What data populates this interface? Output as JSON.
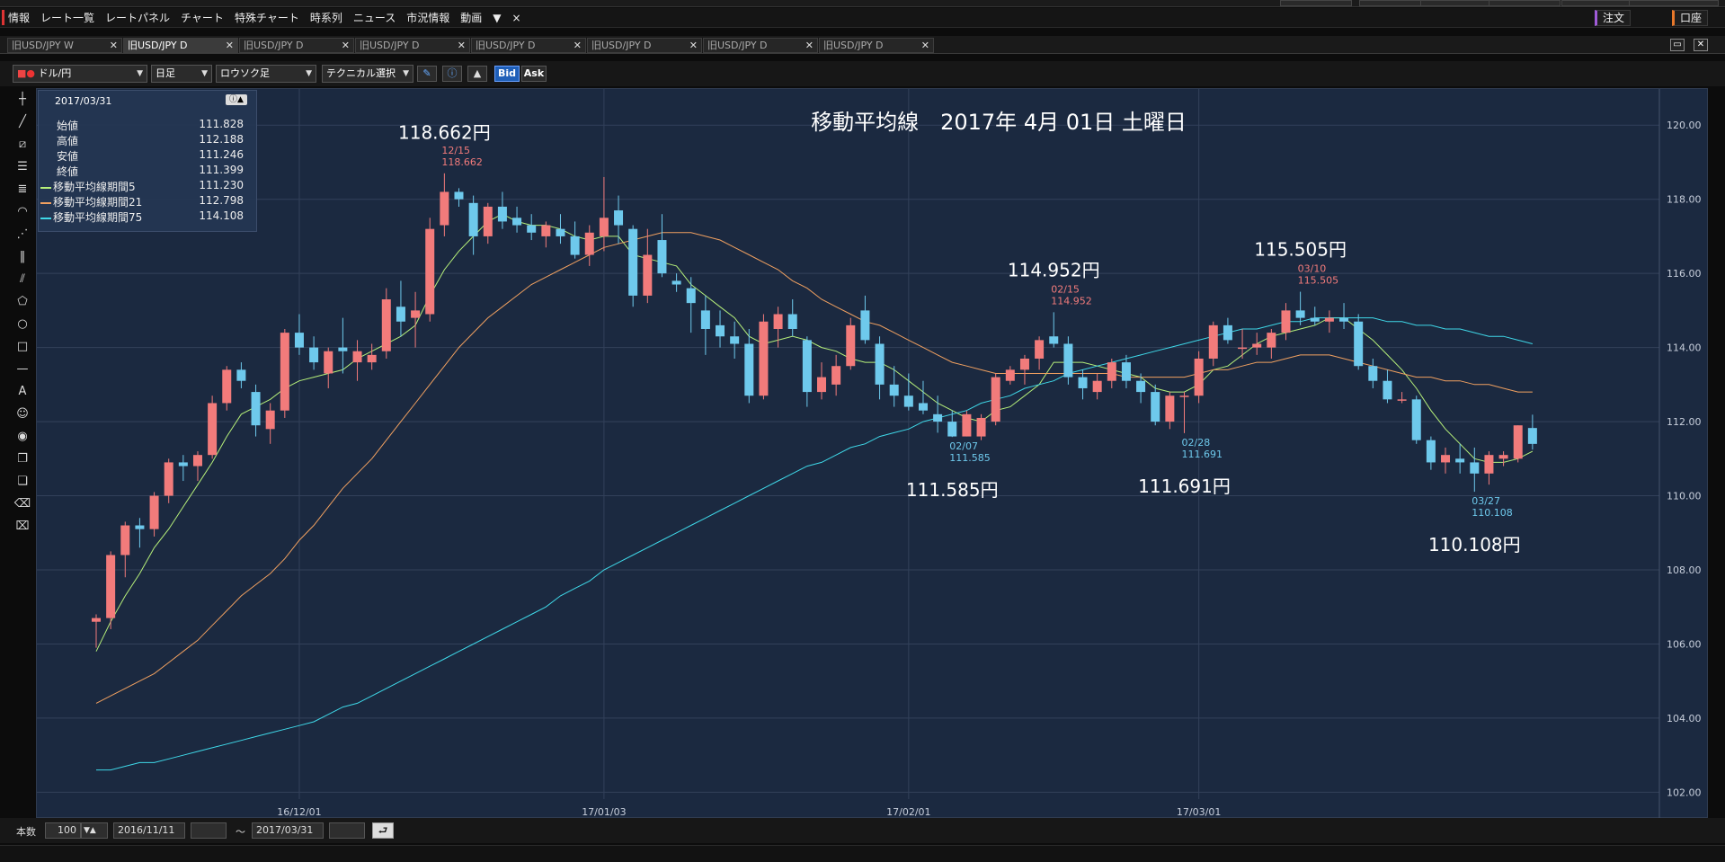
{
  "menubar": {
    "items": [
      "情報",
      "レート一覧",
      "レートパネル",
      "チャート",
      "特殊チャート",
      "時系列",
      "ニュース",
      "市況情報",
      "動画",
      "▼",
      "×"
    ],
    "order_button": "注文",
    "account_button": "口座"
  },
  "tabs": [
    {
      "label": "旧USD/JPY W",
      "active": false
    },
    {
      "label": "旧USD/JPY D",
      "active": true
    },
    {
      "label": "旧USD/JPY D",
      "active": false
    },
    {
      "label": "旧USD/JPY D",
      "active": false
    },
    {
      "label": "旧USD/JPY D",
      "active": false
    },
    {
      "label": "旧USD/JPY D",
      "active": false
    },
    {
      "label": "旧USD/JPY D",
      "active": false
    },
    {
      "label": "旧USD/JPY D",
      "active": false
    }
  ],
  "toolbar": {
    "pair": "ドル/円",
    "timeframe": "日足",
    "chart_type": "ロウソク足",
    "technical": "テクニカル選択",
    "bid_label": "Bid",
    "ask_label": "Ask"
  },
  "info_panel": {
    "date": "2017/03/31",
    "rows": [
      {
        "label": "始値",
        "value": "111.828"
      },
      {
        "label": "高値",
        "value": "112.188"
      },
      {
        "label": "安値",
        "value": "111.246"
      },
      {
        "label": "終値",
        "value": "111.399"
      },
      {
        "label": "移動平均線期間5",
        "value": "111.230",
        "color": "#b6f07a"
      },
      {
        "label": "移動平均線期間21",
        "value": "112.798",
        "color": "#f0a060"
      },
      {
        "label": "移動平均線期間75",
        "value": "114.108",
        "color": "#3fd8e8"
      }
    ]
  },
  "bottombar": {
    "count_label": "本数",
    "count_value": "100",
    "from_date": "2016/11/11",
    "tilde": "〜",
    "to_date": "2017/03/31"
  },
  "colors": {
    "bull": "#f27b7b",
    "bear": "#6ec9ec",
    "ma5": "#b6f07a",
    "ma21": "#f0a060",
    "ma75": "#3fd8e8",
    "plot_bg": "#1b2940",
    "grid": "#33415a"
  },
  "chart_data": {
    "type": "candlestick",
    "title": "移動平均線　2017年 4月 01日 土曜日",
    "ylim": [
      101.5,
      121.0
    ],
    "yticks": [
      102,
      104,
      106,
      108,
      110,
      112,
      114,
      116,
      118,
      120
    ],
    "ytick_labels": [
      "102.00",
      "104.00",
      "106.00",
      "108.00",
      "110.00",
      "112.00",
      "114.00",
      "116.00",
      "118.00",
      "120.00"
    ],
    "xtick_labels": [
      {
        "index": 14,
        "label": "16/12/01"
      },
      {
        "index": 35,
        "label": "17/01/03"
      },
      {
        "index": 56,
        "label": "17/02/01"
      },
      {
        "index": 76,
        "label": "17/03/01"
      }
    ],
    "candles": [
      [
        106.6,
        106.8,
        105.9,
        106.7
      ],
      [
        106.7,
        108.5,
        106.4,
        108.4
      ],
      [
        108.4,
        109.3,
        107.8,
        109.2
      ],
      [
        109.2,
        109.4,
        108.6,
        109.1
      ],
      [
        109.1,
        110.1,
        108.9,
        110.0
      ],
      [
        110.0,
        111.0,
        109.8,
        110.9
      ],
      [
        110.9,
        111.1,
        110.4,
        110.8
      ],
      [
        110.8,
        111.2,
        110.4,
        111.1
      ],
      [
        111.1,
        112.7,
        111.0,
        112.5
      ],
      [
        112.5,
        113.5,
        112.3,
        113.4
      ],
      [
        113.4,
        113.6,
        112.9,
        113.1
      ],
      [
        112.8,
        113.0,
        111.6,
        111.9
      ],
      [
        111.8,
        112.5,
        111.4,
        112.3
      ],
      [
        112.3,
        114.5,
        112.1,
        114.4
      ],
      [
        114.4,
        114.9,
        113.8,
        114.0
      ],
      [
        114.0,
        114.3,
        113.4,
        113.6
      ],
      [
        113.3,
        114.0,
        112.9,
        113.9
      ],
      [
        114.0,
        114.8,
        113.3,
        113.9
      ],
      [
        113.6,
        114.2,
        113.1,
        113.9
      ],
      [
        113.6,
        114.1,
        113.4,
        113.8
      ],
      [
        113.9,
        115.6,
        113.7,
        115.3
      ],
      [
        115.1,
        115.8,
        114.3,
        114.7
      ],
      [
        114.8,
        115.5,
        114.0,
        115.0
      ],
      [
        114.9,
        117.5,
        114.7,
        117.2
      ],
      [
        117.3,
        118.7,
        117.0,
        118.2
      ],
      [
        118.2,
        118.3,
        117.8,
        118.0
      ],
      [
        117.9,
        118.1,
        116.5,
        117.0
      ],
      [
        117.0,
        117.9,
        116.8,
        117.8
      ],
      [
        117.8,
        118.2,
        117.2,
        117.4
      ],
      [
        117.5,
        117.8,
        117.1,
        117.3
      ],
      [
        117.3,
        117.6,
        116.9,
        117.1
      ],
      [
        117.0,
        117.4,
        116.7,
        117.3
      ],
      [
        117.2,
        117.6,
        116.8,
        117.0
      ],
      [
        117.0,
        117.4,
        116.4,
        116.5
      ],
      [
        116.5,
        117.3,
        116.2,
        117.1
      ],
      [
        117.0,
        118.6,
        116.6,
        117.5
      ],
      [
        117.7,
        118.1,
        116.8,
        117.3
      ],
      [
        117.2,
        117.3,
        115.1,
        115.4
      ],
      [
        115.4,
        117.2,
        115.2,
        116.5
      ],
      [
        116.9,
        117.6,
        115.9,
        116.0
      ],
      [
        115.8,
        116.0,
        115.5,
        115.7
      ],
      [
        115.6,
        115.9,
        114.4,
        115.2
      ],
      [
        115.0,
        115.4,
        113.8,
        114.5
      ],
      [
        114.6,
        115.0,
        114.0,
        114.3
      ],
      [
        114.3,
        114.7,
        113.7,
        114.1
      ],
      [
        114.1,
        114.5,
        112.5,
        112.7
      ],
      [
        112.7,
        114.9,
        112.6,
        114.7
      ],
      [
        114.5,
        115.1,
        114.0,
        114.9
      ],
      [
        114.9,
        115.3,
        114.3,
        114.5
      ],
      [
        114.2,
        114.3,
        112.4,
        112.8
      ],
      [
        112.8,
        113.6,
        112.6,
        113.2
      ],
      [
        113.0,
        113.8,
        112.7,
        113.5
      ],
      [
        113.5,
        114.8,
        113.4,
        114.6
      ],
      [
        115.0,
        115.4,
        114.1,
        114.2
      ],
      [
        114.1,
        114.3,
        112.6,
        113.0
      ],
      [
        113.0,
        113.5,
        112.4,
        112.7
      ],
      [
        112.7,
        113.3,
        112.3,
        112.4
      ],
      [
        112.5,
        113.1,
        112.2,
        112.3
      ],
      [
        112.2,
        112.7,
        111.7,
        112.0
      ],
      [
        112.0,
        112.3,
        111.585,
        111.6
      ],
      [
        111.6,
        112.3,
        111.6,
        112.2
      ],
      [
        111.6,
        112.2,
        111.5,
        112.1
      ],
      [
        112.0,
        113.3,
        111.9,
        113.2
      ],
      [
        113.1,
        113.5,
        113.0,
        113.4
      ],
      [
        113.4,
        113.8,
        113.0,
        113.7
      ],
      [
        113.7,
        114.3,
        113.4,
        114.2
      ],
      [
        114.3,
        114.952,
        114.0,
        114.1
      ],
      [
        114.1,
        114.3,
        113.0,
        113.2
      ],
      [
        113.2,
        113.4,
        112.6,
        112.9
      ],
      [
        112.8,
        113.3,
        112.6,
        113.1
      ],
      [
        113.1,
        113.7,
        112.9,
        113.6
      ],
      [
        113.6,
        113.8,
        112.9,
        113.1
      ],
      [
        113.1,
        113.3,
        112.5,
        112.8
      ],
      [
        112.8,
        113.0,
        111.9,
        112.0
      ],
      [
        112.0,
        112.8,
        111.8,
        112.7
      ],
      [
        112.7,
        112.8,
        111.691,
        112.7
      ],
      [
        112.7,
        113.9,
        112.5,
        113.7
      ],
      [
        113.7,
        114.7,
        113.5,
        114.6
      ],
      [
        114.6,
        114.8,
        114.1,
        114.2
      ],
      [
        114.0,
        114.5,
        113.7,
        114.0
      ],
      [
        114.0,
        114.4,
        113.8,
        114.1
      ],
      [
        114.0,
        114.5,
        113.7,
        114.4
      ],
      [
        114.4,
        115.2,
        114.2,
        115.0
      ],
      [
        115.0,
        115.505,
        114.6,
        114.8
      ],
      [
        114.8,
        115.1,
        114.6,
        114.7
      ],
      [
        114.7,
        115.0,
        114.4,
        114.8
      ],
      [
        114.8,
        115.2,
        114.5,
        114.7
      ],
      [
        114.7,
        114.9,
        113.4,
        113.5
      ],
      [
        113.5,
        113.7,
        112.9,
        113.1
      ],
      [
        113.1,
        113.4,
        112.5,
        112.6
      ],
      [
        112.6,
        112.8,
        112.5,
        112.6
      ],
      [
        112.6,
        112.7,
        111.4,
        111.5
      ],
      [
        111.5,
        111.6,
        110.7,
        110.9
      ],
      [
        110.9,
        111.3,
        110.6,
        111.1
      ],
      [
        111.0,
        111.4,
        110.6,
        110.9
      ],
      [
        110.9,
        111.3,
        110.108,
        110.6
      ],
      [
        110.6,
        111.2,
        110.3,
        111.1
      ],
      [
        111.0,
        111.2,
        110.8,
        111.1
      ],
      [
        111.0,
        111.9,
        110.9,
        111.9
      ],
      [
        111.828,
        112.188,
        111.246,
        111.399
      ]
    ],
    "series": [
      {
        "name": "移動平均線期間5",
        "values": [
          105.8,
          106.6,
          107.3,
          107.9,
          108.6,
          109.1,
          109.7,
          110.3,
          110.9,
          111.6,
          112.2,
          112.4,
          112.6,
          112.9,
          113.1,
          113.2,
          113.3,
          113.4,
          113.7,
          113.9,
          114.1,
          114.3,
          114.6,
          115.4,
          116.1,
          116.6,
          117.0,
          117.4,
          117.6,
          117.4,
          117.3,
          117.3,
          117.2,
          117.0,
          116.9,
          117.0,
          117.0,
          116.5,
          116.4,
          116.3,
          116.2,
          115.7,
          115.4,
          115.1,
          114.8,
          114.3,
          114.1,
          114.2,
          114.3,
          114.2,
          114.0,
          113.9,
          113.7,
          113.6,
          113.6,
          113.4,
          113.1,
          112.8,
          112.5,
          112.3,
          112.1,
          112.0,
          112.3,
          112.4,
          112.7,
          113.0,
          113.6,
          113.6,
          113.6,
          113.5,
          113.4,
          113.3,
          113.2,
          112.9,
          112.8,
          112.8,
          113.0,
          113.4,
          113.5,
          113.8,
          114.1,
          114.3,
          114.4,
          114.5,
          114.6,
          114.8,
          114.8,
          114.5,
          114.2,
          113.8,
          113.4,
          112.9,
          112.3,
          111.8,
          111.4,
          111.0,
          110.9,
          110.9,
          111.0,
          111.2
        ]
      },
      {
        "name": "移動平均線期間21",
        "values": [
          104.4,
          104.6,
          104.8,
          105.0,
          105.2,
          105.5,
          105.8,
          106.1,
          106.5,
          106.9,
          107.3,
          107.6,
          107.9,
          108.3,
          108.8,
          109.2,
          109.7,
          110.2,
          110.6,
          111.0,
          111.5,
          112.0,
          112.5,
          113.0,
          113.5,
          114.0,
          114.4,
          114.8,
          115.1,
          115.4,
          115.7,
          115.9,
          116.1,
          116.3,
          116.5,
          116.7,
          116.8,
          116.9,
          117.0,
          117.1,
          117.1,
          117.1,
          117.0,
          116.9,
          116.7,
          116.5,
          116.3,
          116.1,
          115.8,
          115.6,
          115.3,
          115.1,
          114.9,
          114.7,
          114.6,
          114.4,
          114.2,
          114.0,
          113.8,
          113.6,
          113.5,
          113.4,
          113.3,
          113.3,
          113.3,
          113.3,
          113.3,
          113.3,
          113.3,
          113.3,
          113.3,
          113.2,
          113.2,
          113.2,
          113.2,
          113.2,
          113.3,
          113.4,
          113.4,
          113.5,
          113.6,
          113.6,
          113.7,
          113.8,
          113.8,
          113.8,
          113.7,
          113.6,
          113.5,
          113.4,
          113.3,
          113.2,
          113.2,
          113.1,
          113.1,
          113.0,
          113.0,
          112.9,
          112.8,
          112.8
        ]
      },
      {
        "name": "移動平均線期間75",
        "values": [
          102.6,
          102.6,
          102.7,
          102.8,
          102.8,
          102.9,
          103.0,
          103.1,
          103.2,
          103.3,
          103.4,
          103.5,
          103.6,
          103.7,
          103.8,
          103.9,
          104.1,
          104.3,
          104.4,
          104.6,
          104.8,
          105.0,
          105.2,
          105.4,
          105.6,
          105.8,
          106.0,
          106.2,
          106.4,
          106.6,
          106.8,
          107.0,
          107.3,
          107.5,
          107.7,
          108.0,
          108.2,
          108.4,
          108.6,
          108.8,
          109.0,
          109.2,
          109.4,
          109.6,
          109.8,
          110.0,
          110.2,
          110.4,
          110.6,
          110.8,
          110.9,
          111.1,
          111.3,
          111.4,
          111.6,
          111.7,
          111.8,
          112.0,
          112.1,
          112.2,
          112.3,
          112.5,
          112.6,
          112.7,
          112.9,
          113.0,
          113.1,
          113.3,
          113.4,
          113.5,
          113.6,
          113.7,
          113.8,
          113.9,
          114.0,
          114.1,
          114.2,
          114.3,
          114.4,
          114.5,
          114.5,
          114.6,
          114.7,
          114.7,
          114.8,
          114.8,
          114.8,
          114.8,
          114.8,
          114.7,
          114.7,
          114.6,
          114.6,
          114.5,
          114.5,
          114.4,
          114.3,
          114.3,
          114.2,
          114.1
        ]
      }
    ],
    "small_labels": [
      {
        "index": 24,
        "date": "12/15",
        "price": "118.662",
        "pos": "above",
        "color": "#f27b7b"
      },
      {
        "index": 59,
        "date": "02/07",
        "price": "111.585",
        "pos": "below",
        "color": "#6ec9ec"
      },
      {
        "index": 66,
        "date": "02/15",
        "price": "114.952",
        "pos": "above",
        "color": "#f27b7b"
      },
      {
        "index": 75,
        "date": "02/28",
        "price": "111.691",
        "pos": "below",
        "color": "#6ec9ec"
      },
      {
        "index": 83,
        "date": "03/10",
        "price": "115.505",
        "pos": "above",
        "color": "#f27b7b"
      },
      {
        "index": 95,
        "date": "03/27",
        "price": "110.108",
        "pos": "below",
        "color": "#6ec9ec"
      }
    ],
    "annotations": [
      {
        "index": 24,
        "price": 118.662,
        "text": "118.662円",
        "pos": "above"
      },
      {
        "index": 59,
        "price": 111.585,
        "text": "111.585円",
        "pos": "below"
      },
      {
        "index": 66,
        "price": 114.952,
        "text": "114.952円",
        "pos": "above"
      },
      {
        "index": 75,
        "price": 111.691,
        "text": "111.691円",
        "pos": "below"
      },
      {
        "index": 83,
        "price": 115.505,
        "text": "115.505円",
        "pos": "above"
      },
      {
        "index": 95,
        "price": 110.108,
        "text": "110.108円",
        "pos": "below"
      }
    ]
  }
}
